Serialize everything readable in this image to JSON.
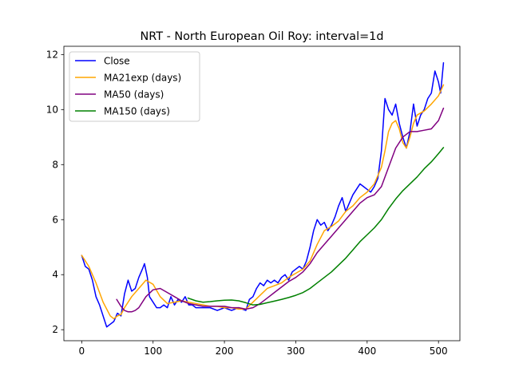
{
  "chart_data": {
    "type": "line",
    "title": "NRT - North European Oil Roy: interval=1d",
    "xlabel": "",
    "ylabel": "",
    "xlim": [
      -25,
      530
    ],
    "ylim": [
      1.6,
      12.3
    ],
    "xticks": [
      0,
      100,
      200,
      300,
      400,
      500
    ],
    "yticks": [
      2,
      4,
      6,
      8,
      10,
      12
    ],
    "legend_position": "top-left",
    "series": [
      {
        "name": "Close",
        "color": "#0000ff",
        "x": [
          0,
          5,
          10,
          15,
          20,
          25,
          30,
          35,
          40,
          45,
          50,
          55,
          60,
          65,
          70,
          75,
          80,
          85,
          88,
          92,
          95,
          100,
          105,
          110,
          115,
          120,
          125,
          130,
          135,
          140,
          145,
          150,
          155,
          160,
          170,
          180,
          190,
          200,
          210,
          220,
          230,
          235,
          240,
          245,
          250,
          255,
          260,
          265,
          270,
          275,
          280,
          285,
          290,
          295,
          300,
          305,
          310,
          315,
          320,
          325,
          330,
          335,
          340,
          345,
          350,
          355,
          360,
          365,
          370,
          375,
          380,
          385,
          390,
          395,
          400,
          405,
          410,
          415,
          420,
          425,
          430,
          435,
          440,
          445,
          450,
          455,
          460,
          465,
          470,
          475,
          480,
          485,
          490,
          495,
          500,
          503,
          507
        ],
        "y": [
          4.7,
          4.3,
          4.2,
          3.8,
          3.2,
          2.9,
          2.5,
          2.1,
          2.2,
          2.3,
          2.6,
          2.5,
          3.3,
          3.8,
          3.4,
          3.5,
          3.9,
          4.2,
          4.4,
          3.9,
          3.2,
          3.0,
          2.8,
          2.8,
          2.9,
          2.8,
          3.2,
          2.9,
          3.1,
          3.0,
          3.2,
          2.9,
          2.9,
          2.8,
          2.8,
          2.8,
          2.7,
          2.8,
          2.7,
          2.8,
          2.7,
          3.1,
          3.2,
          3.5,
          3.7,
          3.6,
          3.8,
          3.7,
          3.8,
          3.7,
          3.9,
          4.0,
          3.8,
          4.1,
          4.2,
          4.3,
          4.2,
          4.5,
          5.0,
          5.6,
          6.0,
          5.8,
          5.9,
          5.6,
          5.8,
          6.1,
          6.5,
          6.8,
          6.3,
          6.6,
          6.9,
          7.1,
          7.3,
          7.2,
          7.1,
          7.0,
          7.2,
          7.5,
          8.5,
          10.4,
          10.0,
          9.8,
          10.2,
          9.5,
          9.0,
          8.6,
          9.2,
          10.2,
          9.4,
          9.8,
          10.0,
          10.4,
          10.6,
          11.4,
          11.0,
          10.6,
          11.7
        ]
      },
      {
        "name": "MA21exp (days)",
        "color": "#ffa500",
        "x": [
          0,
          10,
          20,
          30,
          40,
          45,
          50,
          55,
          60,
          70,
          80,
          90,
          100,
          110,
          120,
          130,
          140,
          150,
          160,
          170,
          180,
          190,
          200,
          210,
          220,
          230,
          240,
          250,
          260,
          270,
          280,
          290,
          300,
          310,
          320,
          330,
          340,
          350,
          360,
          370,
          380,
          390,
          400,
          410,
          420,
          425,
          430,
          435,
          440,
          445,
          450,
          455,
          460,
          465,
          470,
          480,
          490,
          500,
          507
        ],
        "y": [
          4.7,
          4.3,
          3.7,
          3.0,
          2.5,
          2.4,
          2.5,
          2.55,
          2.8,
          3.2,
          3.5,
          3.8,
          3.65,
          3.2,
          2.95,
          3.0,
          3.05,
          3.0,
          2.95,
          2.9,
          2.85,
          2.85,
          2.8,
          2.8,
          2.75,
          2.75,
          3.0,
          3.25,
          3.5,
          3.6,
          3.7,
          3.9,
          4.05,
          4.2,
          4.5,
          5.1,
          5.6,
          5.75,
          5.95,
          6.3,
          6.5,
          6.8,
          7.0,
          7.3,
          7.9,
          8.5,
          9.2,
          9.5,
          9.6,
          9.3,
          8.8,
          8.6,
          9.0,
          9.5,
          9.8,
          9.95,
          10.2,
          10.5,
          10.9
        ]
      },
      {
        "name": "MA50 (days)",
        "color": "#800080",
        "x": [
          49,
          55,
          60,
          65,
          70,
          75,
          80,
          90,
          100,
          110,
          120,
          130,
          140,
          150,
          160,
          170,
          180,
          190,
          200,
          210,
          220,
          230,
          240,
          250,
          260,
          270,
          280,
          290,
          300,
          310,
          320,
          330,
          340,
          350,
          360,
          370,
          380,
          390,
          400,
          410,
          420,
          430,
          440,
          450,
          460,
          470,
          480,
          490,
          500,
          507
        ],
        "y": [
          3.1,
          2.85,
          2.7,
          2.65,
          2.65,
          2.7,
          2.8,
          3.2,
          3.45,
          3.5,
          3.35,
          3.2,
          3.05,
          2.95,
          2.9,
          2.85,
          2.85,
          2.85,
          2.85,
          2.8,
          2.8,
          2.75,
          2.8,
          2.95,
          3.15,
          3.35,
          3.55,
          3.75,
          3.9,
          4.1,
          4.4,
          4.8,
          5.1,
          5.4,
          5.7,
          6.0,
          6.3,
          6.6,
          6.8,
          6.9,
          7.2,
          7.9,
          8.6,
          9.0,
          9.2,
          9.2,
          9.25,
          9.3,
          9.6,
          10.05
        ]
      },
      {
        "name": "MA150 (days)",
        "color": "#008000",
        "x": [
          149,
          160,
          170,
          180,
          190,
          200,
          210,
          220,
          230,
          240,
          250,
          260,
          270,
          280,
          290,
          300,
          310,
          320,
          330,
          340,
          350,
          360,
          370,
          380,
          390,
          400,
          410,
          420,
          430,
          440,
          450,
          460,
          470,
          480,
          490,
          500,
          507
        ],
        "y": [
          3.15,
          3.05,
          3.0,
          3.02,
          3.05,
          3.07,
          3.08,
          3.05,
          2.98,
          2.9,
          2.92,
          2.98,
          3.04,
          3.1,
          3.17,
          3.25,
          3.35,
          3.5,
          3.7,
          3.9,
          4.1,
          4.35,
          4.6,
          4.9,
          5.2,
          5.45,
          5.7,
          6.0,
          6.4,
          6.75,
          7.05,
          7.3,
          7.55,
          7.85,
          8.1,
          8.4,
          8.62
        ]
      }
    ]
  }
}
